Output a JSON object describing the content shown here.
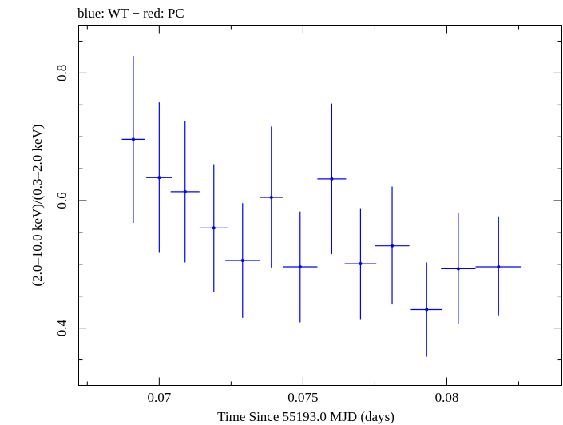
{
  "chart_data": {
    "type": "scatter",
    "title": "blue: WT − red: PC",
    "xlabel": "Time Since 55193.0 MJD (days)",
    "ylabel": "(2.0–10.0 keV)/(0.3–2.0 keV)",
    "xlim": [
      0.0672,
      0.084
    ],
    "ylim": [
      0.31,
      0.875
    ],
    "x_ticks": [
      {
        "value": 0.07,
        "label": "0.07"
      },
      {
        "value": 0.075,
        "label": "0.075"
      },
      {
        "value": 0.08,
        "label": "0.08"
      }
    ],
    "y_ticks": [
      {
        "value": 0.4,
        "label": "0.4"
      },
      {
        "value": 0.6,
        "label": "0.6"
      },
      {
        "value": 0.8,
        "label": "0.8"
      }
    ],
    "series": [
      {
        "color": "#0000ff",
        "points": [
          {
            "x": 0.0691,
            "xerr": 0.0004,
            "y": 0.696,
            "ylo": 0.565,
            "yhi": 0.827
          },
          {
            "x": 0.07,
            "xerr": 0.00045,
            "y": 0.636,
            "ylo": 0.518,
            "yhi": 0.754
          },
          {
            "x": 0.0709,
            "xerr": 0.0005,
            "y": 0.614,
            "ylo": 0.503,
            "yhi": 0.725
          },
          {
            "x": 0.0719,
            "xerr": 0.0005,
            "y": 0.557,
            "ylo": 0.457,
            "yhi": 0.657
          },
          {
            "x": 0.0729,
            "xerr": 0.0006,
            "y": 0.506,
            "ylo": 0.416,
            "yhi": 0.596
          },
          {
            "x": 0.0739,
            "xerr": 0.0004,
            "y": 0.605,
            "ylo": 0.495,
            "yhi": 0.716
          },
          {
            "x": 0.0749,
            "xerr": 0.0006,
            "y": 0.496,
            "ylo": 0.409,
            "yhi": 0.583
          },
          {
            "x": 0.076,
            "xerr": 0.0005,
            "y": 0.634,
            "ylo": 0.516,
            "yhi": 0.752
          },
          {
            "x": 0.077,
            "xerr": 0.00055,
            "y": 0.501,
            "ylo": 0.414,
            "yhi": 0.588
          },
          {
            "x": 0.0781,
            "xerr": 0.0006,
            "y": 0.529,
            "ylo": 0.437,
            "yhi": 0.622
          },
          {
            "x": 0.0793,
            "xerr": 0.00055,
            "y": 0.429,
            "ylo": 0.355,
            "yhi": 0.503
          },
          {
            "x": 0.0804,
            "xerr": 0.0006,
            "y": 0.493,
            "ylo": 0.407,
            "yhi": 0.58
          },
          {
            "x": 0.0818,
            "xerr": 0.0008,
            "y": 0.496,
            "ylo": 0.42,
            "yhi": 0.574
          }
        ]
      }
    ],
    "grid": false,
    "legend": "none"
  }
}
